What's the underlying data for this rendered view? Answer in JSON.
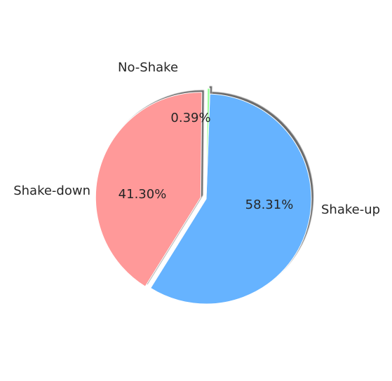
{
  "chart_data": {
    "type": "pie",
    "title": "",
    "slices": [
      {
        "label": "Shake-up",
        "value": 58.31,
        "pct_label": "58.31%",
        "color": "#66b3ff",
        "exploded": false
      },
      {
        "label": "Shake-down",
        "value": 41.3,
        "pct_label": "41.30%",
        "color": "#ff9999",
        "exploded": true
      },
      {
        "label": "No-Shake",
        "value": 0.39,
        "pct_label": "0.39%",
        "color": "#99ff99",
        "exploded": true
      }
    ],
    "shadow": true,
    "legend": "none"
  }
}
